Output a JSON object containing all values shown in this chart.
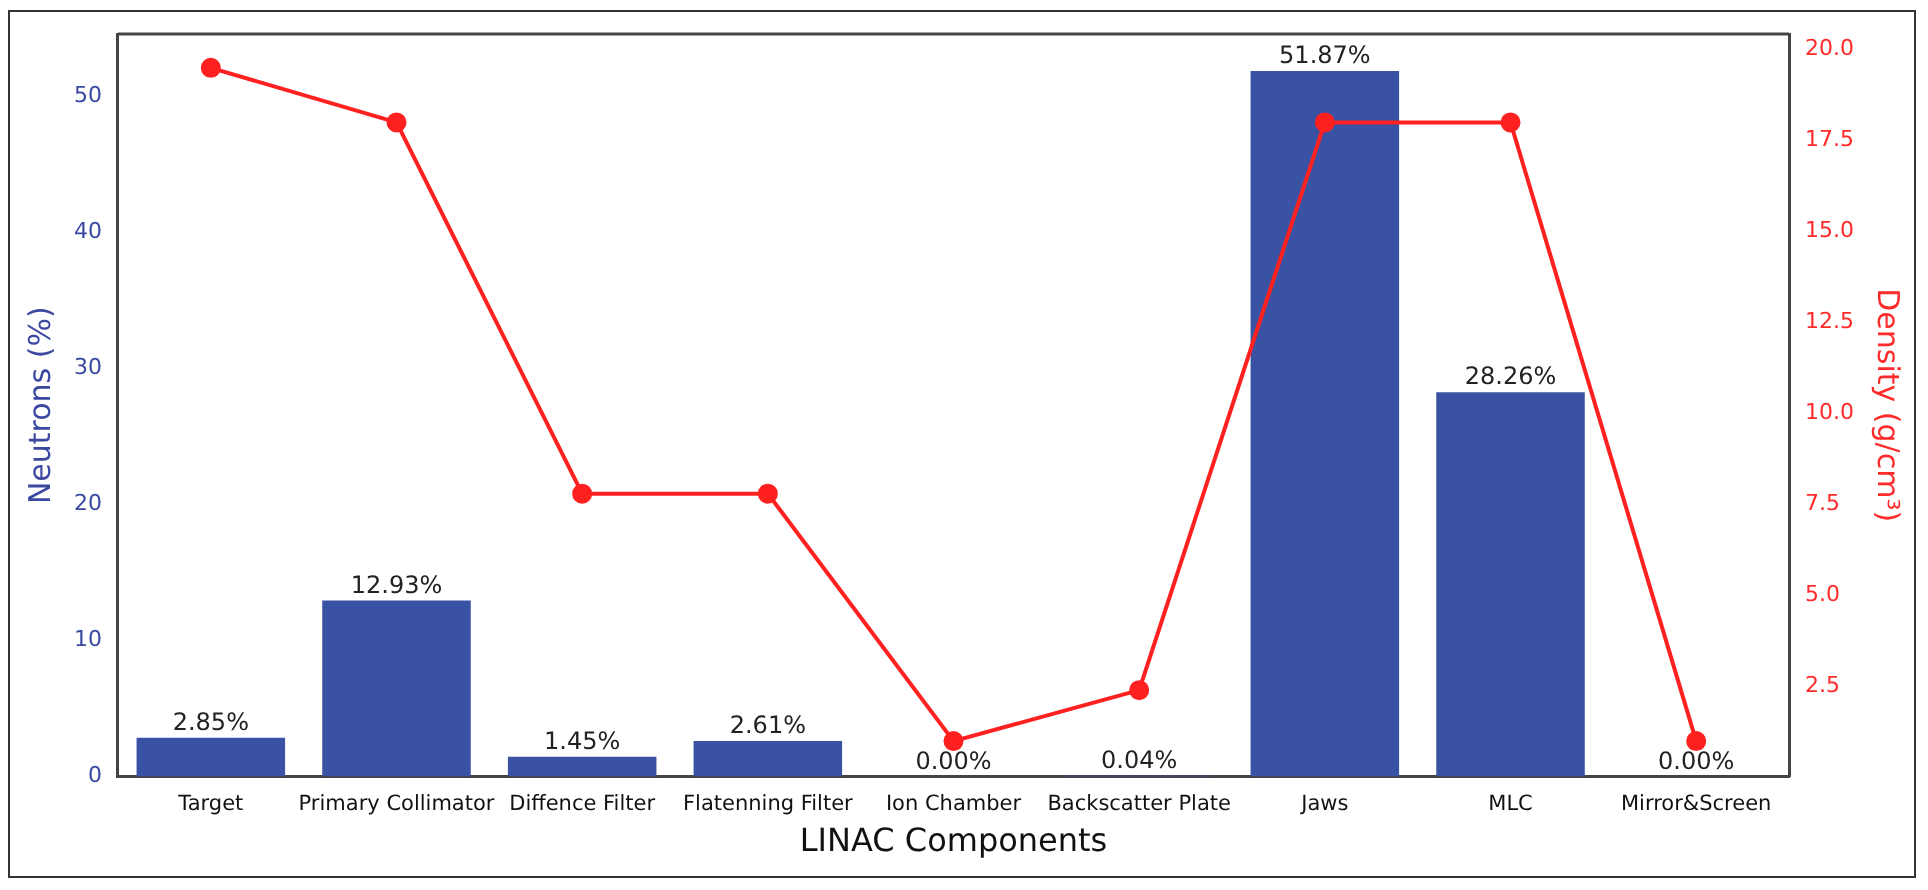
{
  "chart_data": {
    "type": "bar",
    "xlabel": "LINAC Components",
    "ylabel": "Neutrons (%)",
    "y2label": "Density (g/cm³)",
    "categories": [
      "Target",
      "Primary Collimator",
      "Diffence Filter",
      "Flatenning Filter",
      "Ion Chamber",
      "Backscatter Plate",
      "Jaws",
      "MLC",
      "Mirror&Screen"
    ],
    "series": [
      {
        "color": "#3a52a3",
        "values": [
          2.85,
          12.93,
          1.45,
          2.61,
          0.0,
          0.04,
          51.87,
          28.26,
          0.0
        ],
        "value_labels": [
          "2.85%",
          "12.93%",
          "1.45%",
          "2.61%",
          "0.00%",
          "0.04%",
          "51.87%",
          "28.26%",
          "0.00%"
        ]
      },
      {
        "type": "line",
        "axis": "y2",
        "color": "#ff2020",
        "marker": "circle",
        "values": [
          19.5,
          18,
          7.8,
          7.8,
          1.0,
          2.4,
          18,
          18,
          1.0
        ]
      }
    ],
    "ylim": [
      0,
      54.6
    ],
    "yticks": [
      0,
      10,
      20,
      30,
      40,
      50
    ],
    "y2lim": [
      0.03,
      20.43
    ],
    "y2ticks": [
      {
        "value": 2.5,
        "label": "2.5"
      },
      {
        "value": 5,
        "label": "5.0"
      },
      {
        "value": 7.5,
        "label": "7.5"
      },
      {
        "value": 10,
        "label": "10.0"
      },
      {
        "value": 12.5,
        "label": "12.5"
      },
      {
        "value": 15,
        "label": "15.0"
      },
      {
        "value": 17.5,
        "label": "17.5"
      },
      {
        "value": 20,
        "label": "20.0"
      }
    ],
    "grid": false,
    "legend": false
  }
}
